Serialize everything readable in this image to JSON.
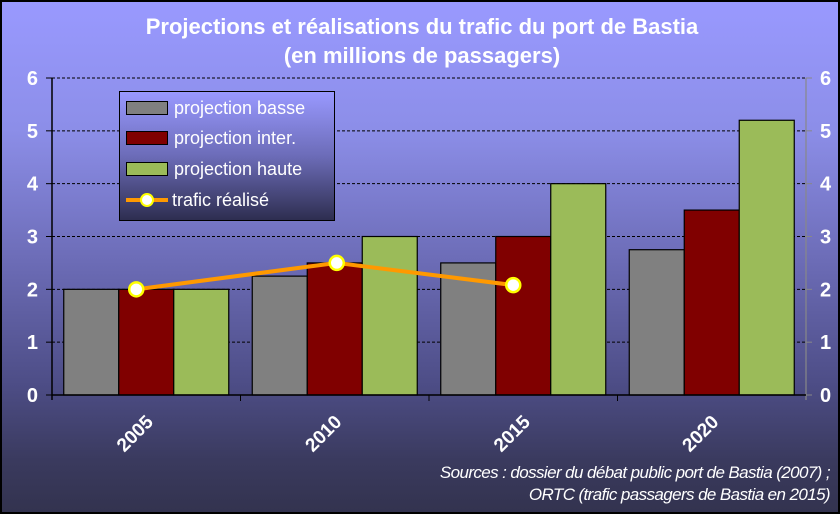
{
  "title": {
    "line1": "Projections et réalisations du trafic du port de Bastia",
    "line2": "(en millions de passagers)"
  },
  "legend": {
    "items": [
      {
        "label": "projection basse",
        "color": "#808080",
        "type": "bar"
      },
      {
        "label": "projection inter.",
        "color": "#800000",
        "type": "bar"
      },
      {
        "label": "projection haute",
        "color": "#9bbb59",
        "type": "bar"
      },
      {
        "label": "trafic réalisé",
        "color": "#ff9900",
        "type": "line"
      }
    ]
  },
  "axes": {
    "y_ticks": [
      "0",
      "1",
      "2",
      "3",
      "4",
      "5",
      "6"
    ],
    "categories": [
      "2005",
      "2010",
      "2015",
      "2020"
    ]
  },
  "sources": {
    "line1": "Sources : dossier du débat public port de Bastia (2007) ;",
    "line2": "ORTC (trafic passagers de Bastia en 2015)"
  },
  "colors": {
    "basse": "#808080",
    "inter": "#800000",
    "haute": "#9bbb59",
    "realise_line": "#ff9900",
    "marker_fill": "#ffffff",
    "marker_edge": "#ffff00"
  },
  "chart_data": {
    "type": "bar",
    "title": "Projections et réalisations du trafic du port de Bastia (en millions de passagers)",
    "xlabel": "",
    "ylabel": "millions de passagers",
    "ylim": [
      0,
      6
    ],
    "y_ticks": [
      0,
      1,
      2,
      3,
      4,
      5,
      6
    ],
    "secondary_y_axis": true,
    "grid": "horizontal dashed",
    "legend_position": "upper left (inside)",
    "categories": [
      "2005",
      "2010",
      "2015",
      "2020"
    ],
    "series": [
      {
        "name": "projection basse",
        "type": "bar",
        "values": [
          2.0,
          2.25,
          2.5,
          2.75
        ]
      },
      {
        "name": "projection inter.",
        "type": "bar",
        "values": [
          2.0,
          2.5,
          3.0,
          3.5
        ]
      },
      {
        "name": "projection haute",
        "type": "bar",
        "values": [
          2.0,
          3.0,
          4.0,
          5.2
        ]
      },
      {
        "name": "trafic réalisé",
        "type": "line",
        "values": [
          2.0,
          2.5,
          2.08,
          null
        ]
      }
    ],
    "annotations": [
      "Sources : dossier du débat public port de Bastia (2007) ; ORTC (trafic passagers de Bastia en 2015)"
    ]
  }
}
